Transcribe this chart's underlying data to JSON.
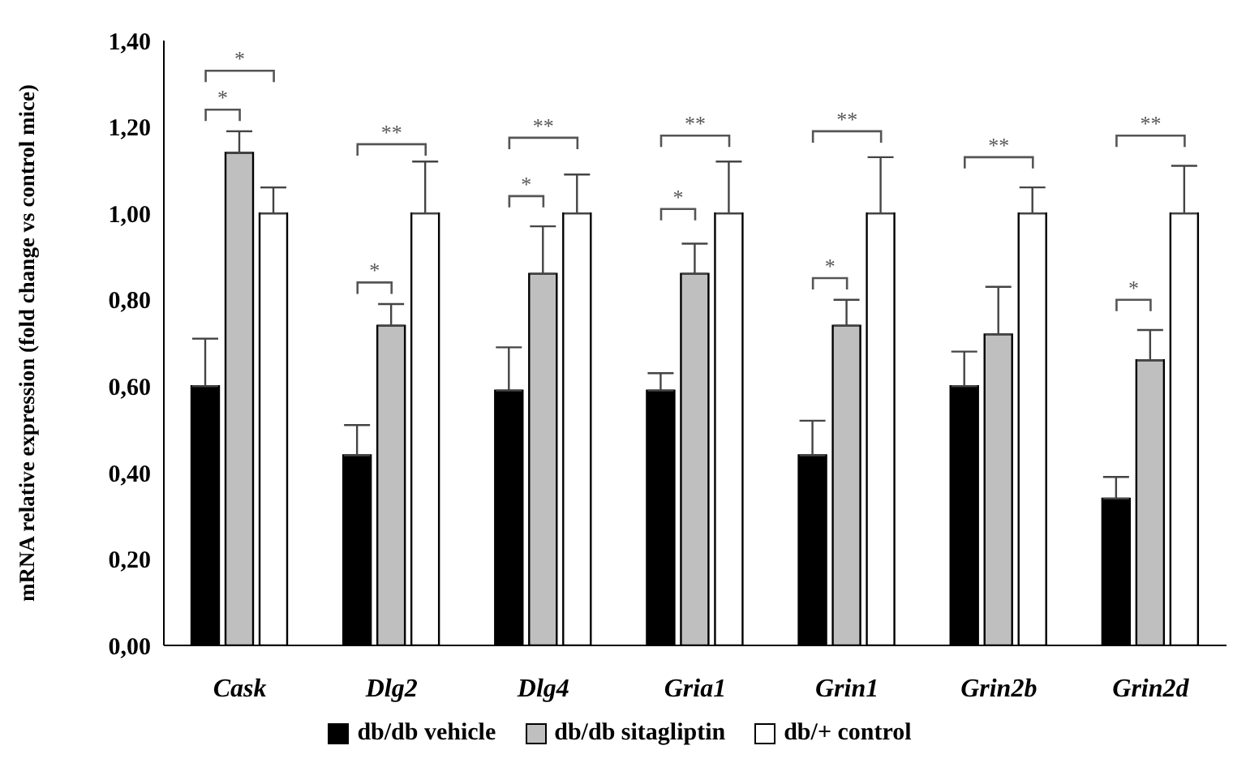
{
  "chart_data": {
    "type": "bar",
    "ylabel": "mRNA relative expression (fold change vs control mice)",
    "categories": [
      "Cask",
      "Dlg2",
      "Dlg4",
      "Gria1",
      "Grin1",
      "Grin2b",
      "Grin2d"
    ],
    "series": [
      {
        "name": "db/db vehicle",
        "color": "#000000",
        "values": [
          0.6,
          0.44,
          0.59,
          0.59,
          0.44,
          0.6,
          0.34
        ],
        "errors": [
          [
            0.6,
            0.71
          ],
          [
            0.44,
            0.51
          ],
          [
            0.59,
            0.69
          ],
          [
            0.59,
            0.63
          ],
          [
            0.44,
            0.52
          ],
          [
            0.6,
            0.68
          ],
          [
            0.34,
            0.39
          ]
        ]
      },
      {
        "name": "db/db sitagliptin",
        "color": "#bfbfbf",
        "values": [
          1.14,
          0.74,
          0.86,
          0.86,
          0.74,
          0.72,
          0.66
        ],
        "errors": [
          [
            1.14,
            1.19
          ],
          [
            0.74,
            0.79
          ],
          [
            0.86,
            0.97
          ],
          [
            0.86,
            0.93
          ],
          [
            0.74,
            0.8
          ],
          [
            0.72,
            0.83
          ],
          [
            0.66,
            0.73
          ]
        ]
      },
      {
        "name": "db/+ control",
        "color": "#ffffff",
        "values": [
          1.0,
          1.0,
          1.0,
          1.0,
          1.0,
          1.0,
          1.0
        ],
        "errors": [
          [
            1.0,
            1.06
          ],
          [
            1.0,
            1.12
          ],
          [
            1.0,
            1.09
          ],
          [
            1.0,
            1.12
          ],
          [
            1.0,
            1.13
          ],
          [
            1.0,
            1.06
          ],
          [
            1.0,
            1.11
          ]
        ]
      }
    ],
    "ylim": [
      0,
      1.4
    ],
    "yticks": [
      {
        "value": 0,
        "label": "0,00"
      },
      {
        "value": 0.2,
        "label": "0,20"
      },
      {
        "value": 0.4,
        "label": "0,40"
      },
      {
        "value": 0.6,
        "label": "0,60"
      },
      {
        "value": 0.8,
        "label": "0,80"
      },
      {
        "value": 1.0,
        "label": "1,00"
      },
      {
        "value": 1.2,
        "label": "1,20"
      },
      {
        "value": 1.4,
        "label": "1,40"
      }
    ],
    "grid": false,
    "legend": "bottom",
    "annotations": [
      "*",
      "*",
      "**",
      "*",
      "**",
      "*",
      "**",
      "*",
      "**",
      "*",
      "**",
      "**",
      "*"
    ]
  }
}
